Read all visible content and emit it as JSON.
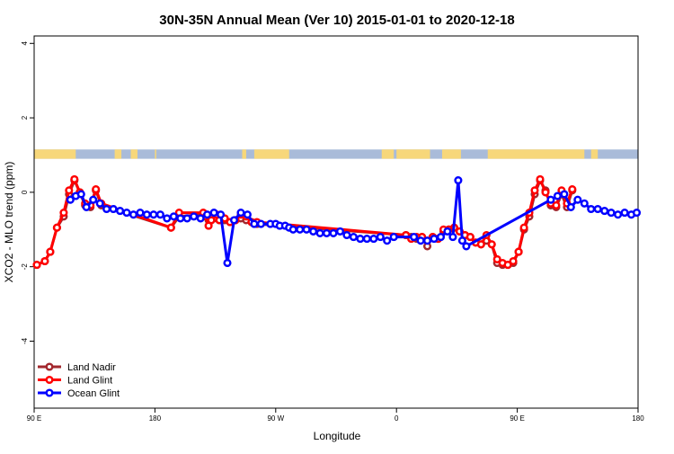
{
  "chart_data": {
    "type": "line",
    "title": "30N-35N Annual Mean (Ver 10)   2015-01-01 to 2020-12-18",
    "xlabel": "Longitude",
    "ylabel": "XCO2 - MLO trend (ppm)",
    "xlim": [
      -90,
      360
    ],
    "ylim": [
      -5.8,
      4.2
    ],
    "xticks": [
      {
        "value": -90,
        "label": "90 E"
      },
      {
        "value": 0,
        "label": "180"
      },
      {
        "value": 90,
        "label": "90 W"
      },
      {
        "value": 180,
        "label": "0"
      },
      {
        "value": 270,
        "label": "90 E"
      },
      {
        "value": 360,
        "label": "180"
      }
    ],
    "yticks": [
      -4,
      -2,
      0,
      2,
      4
    ],
    "legend_position": "bottom-left",
    "grid": false,
    "landmask": {
      "y_bottom": 0.9,
      "y_top": 1.15,
      "ocean_color": "#a9bbd9",
      "land_color": "#f7d77a",
      "land_segments": [
        [
          -90,
          -59
        ],
        [
          -30,
          -25
        ],
        [
          -18,
          -13
        ],
        [
          0,
          1
        ],
        [
          65,
          68
        ],
        [
          74,
          100
        ],
        [
          169,
          178
        ],
        [
          180,
          205
        ],
        [
          214,
          228
        ],
        [
          248,
          320
        ],
        [
          325,
          330
        ]
      ]
    },
    "series": [
      {
        "name": "Land Nadir",
        "color": "#a3282e",
        "x": [
          -88,
          -82,
          -78,
          -73,
          -68,
          -64,
          -60,
          -56,
          -52,
          -48,
          -44,
          -40,
          12,
          18,
          36,
          38,
          40,
          42,
          46,
          48,
          52,
          56,
          60,
          64,
          68,
          72,
          76,
          187,
          191,
          195,
          199,
          203,
          207,
          211,
          215,
          219,
          223,
          227,
          231,
          235,
          239,
          243,
          247,
          251,
          255,
          259,
          263,
          267,
          271,
          275,
          279,
          283,
          287,
          291,
          295,
          299,
          303,
          307,
          311
        ],
        "y": [
          -1.95,
          -1.85,
          -1.6,
          -0.95,
          -0.65,
          -0.05,
          0.32,
          0.0,
          -0.35,
          -0.4,
          0.05,
          -0.35,
          -0.95,
          -0.65,
          -0.6,
          -0.65,
          -0.75,
          -0.75,
          -0.7,
          -0.75,
          -0.75,
          -0.8,
          -0.75,
          -0.7,
          -0.75,
          -0.8,
          -0.85,
          -1.15,
          -1.2,
          -1.25,
          -1.2,
          -1.45,
          -1.2,
          -1.25,
          -1.05,
          -1.0,
          -0.95,
          -1.05,
          -1.15,
          -1.2,
          -1.35,
          -1.4,
          -1.3,
          -1.4,
          -1.9,
          -1.95,
          -1.95,
          -1.9,
          -1.6,
          -1.0,
          -0.65,
          -0.05,
          0.32,
          0.05,
          -0.35,
          -0.4,
          -0.05,
          -0.4,
          0.05
        ]
      },
      {
        "name": "Land Glint",
        "color": "#ff0000",
        "x": [
          -88,
          -82,
          -78,
          -73,
          -68,
          -64,
          -60,
          -56,
          -52,
          -48,
          -44,
          -40,
          12,
          18,
          36,
          38,
          40,
          42,
          46,
          48,
          52,
          56,
          60,
          64,
          68,
          72,
          76,
          187,
          191,
          195,
          199,
          203,
          207,
          211,
          215,
          219,
          223,
          227,
          231,
          235,
          239,
          243,
          247,
          251,
          255,
          259,
          263,
          267,
          271,
          275,
          279,
          283,
          287,
          291,
          295,
          299,
          303,
          307,
          311
        ],
        "y": [
          -1.95,
          -1.85,
          -1.6,
          -0.95,
          -0.55,
          0.05,
          0.35,
          0.0,
          -0.3,
          -0.35,
          0.08,
          -0.3,
          -0.95,
          -0.55,
          -0.55,
          -0.65,
          -0.9,
          -0.75,
          -0.6,
          -0.75,
          -0.7,
          -0.8,
          -0.75,
          -0.6,
          -0.65,
          -0.8,
          -0.8,
          -1.15,
          -1.25,
          -1.2,
          -1.2,
          -1.3,
          -1.2,
          -1.25,
          -1.0,
          -1.0,
          -0.95,
          -1.05,
          -1.15,
          -1.2,
          -1.35,
          -1.4,
          -1.15,
          -1.4,
          -1.8,
          -1.9,
          -1.95,
          -1.85,
          -1.6,
          -0.95,
          -0.55,
          0.05,
          0.35,
          0.0,
          -0.3,
          -0.35,
          0.05,
          -0.3,
          0.08
        ]
      },
      {
        "name": "Ocean Glint",
        "color": "#0000ff",
        "x": [
          -63,
          -59,
          -55,
          -51,
          -46,
          -41,
          -36,
          -31,
          -26,
          -21,
          -16,
          -11,
          -6,
          -1,
          4,
          9,
          14,
          19,
          24,
          29,
          34,
          39,
          44,
          49,
          54,
          59,
          64,
          69,
          74,
          79,
          86,
          90,
          93,
          97,
          100,
          103,
          108,
          113,
          118,
          123,
          128,
          133,
          138,
          143,
          148,
          153,
          158,
          163,
          168,
          173,
          178,
          193,
          198,
          203,
          208,
          213,
          218,
          222,
          226,
          229,
          232,
          295,
          300,
          305,
          310,
          315,
          320,
          325,
          330,
          335,
          340,
          345,
          350,
          355,
          359
        ],
        "y": [
          -0.2,
          -0.1,
          -0.05,
          -0.4,
          -0.2,
          -0.3,
          -0.45,
          -0.45,
          -0.5,
          -0.55,
          -0.6,
          -0.55,
          -0.6,
          -0.6,
          -0.6,
          -0.7,
          -0.65,
          -0.7,
          -0.7,
          -0.65,
          -0.7,
          -0.6,
          -0.55,
          -0.6,
          -1.9,
          -0.75,
          -0.55,
          -0.6,
          -0.85,
          -0.85,
          -0.85,
          -0.85,
          -0.9,
          -0.9,
          -0.95,
          -1.0,
          -1.0,
          -1.0,
          -1.05,
          -1.1,
          -1.1,
          -1.1,
          -1.05,
          -1.15,
          -1.2,
          -1.25,
          -1.25,
          -1.25,
          -1.2,
          -1.3,
          -1.2,
          -1.2,
          -1.3,
          -1.3,
          -1.25,
          -1.2,
          -1.05,
          -1.2,
          0.32,
          -1.3,
          -1.45,
          -0.2,
          -0.1,
          -0.05,
          -0.4,
          -0.2,
          -0.3,
          -0.45,
          -0.45,
          -0.5,
          -0.55,
          -0.6,
          -0.55,
          -0.6,
          -0.55
        ]
      }
    ]
  }
}
